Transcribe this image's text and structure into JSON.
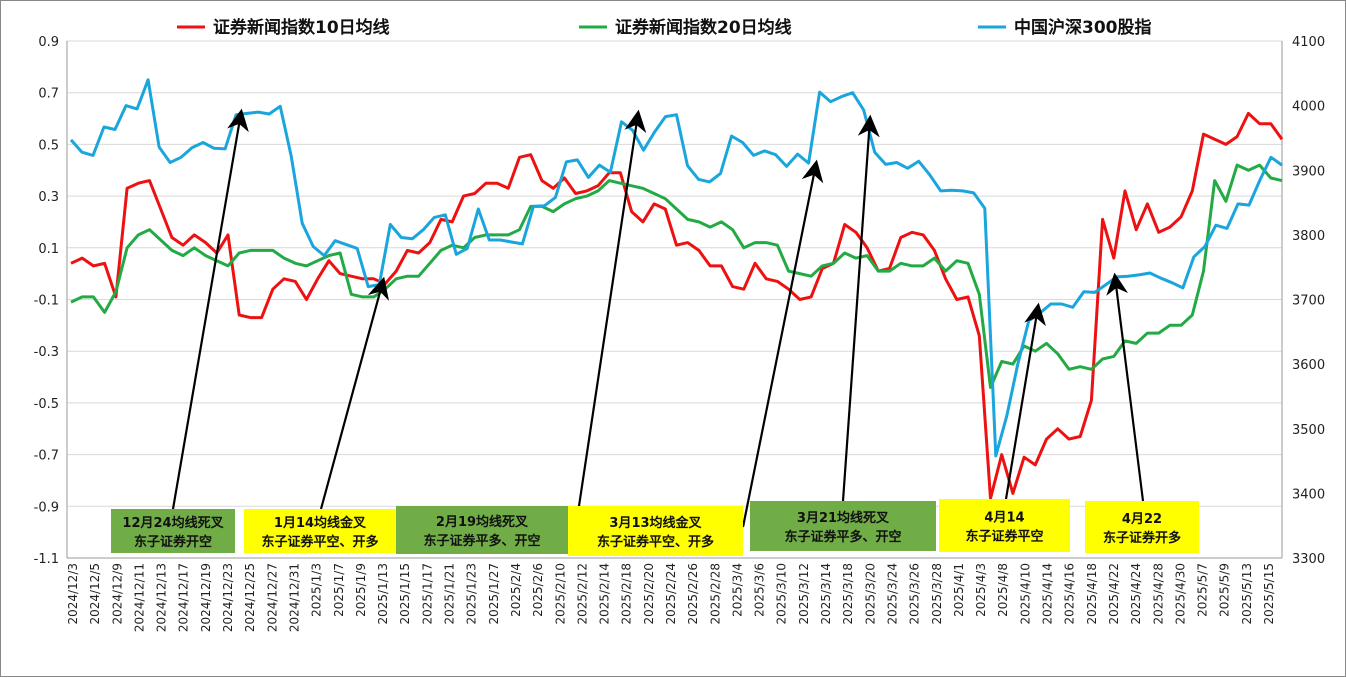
{
  "chart_data": {
    "type": "line",
    "legend_position": "top",
    "grid": {
      "horizontal": true,
      "vertical": false
    },
    "left_axis": {
      "ticks": [
        "0.9",
        "0.7",
        "0.5",
        "0.3",
        "0.1",
        "-0.1",
        "-0.3",
        "-0.5",
        "-0.7",
        "-0.9",
        "-1.1"
      ],
      "ylim": [
        -1.1,
        0.9
      ]
    },
    "right_axis": {
      "ticks": [
        "4100",
        "4000",
        "3900",
        "3800",
        "3700",
        "3600",
        "3500",
        "3400",
        "3300"
      ],
      "ylim": [
        3300,
        4100
      ]
    },
    "x_tick_labels": [
      "2024/12/3",
      "2024/12/5",
      "2024/12/9",
      "2024/12/11",
      "2024/12/13",
      "2024/12/17",
      "2024/12/19",
      "2024/12/23",
      "2024/12/25",
      "2024/12/27",
      "2024/12/31",
      "2025/1/3",
      "2025/1/7",
      "2025/1/9",
      "2025/1/13",
      "2025/1/15",
      "2025/1/17",
      "2025/1/21",
      "2025/1/23",
      "2025/1/27",
      "2025/2/4",
      "2025/2/6",
      "2025/2/10",
      "2025/2/12",
      "2025/2/14",
      "2025/2/18",
      "2025/2/20",
      "2025/2/24",
      "2025/2/26",
      "2025/2/28",
      "2025/3/4",
      "2025/3/6",
      "2025/3/10",
      "2025/3/12",
      "2025/3/14",
      "2025/3/18",
      "2025/3/20",
      "2025/3/24",
      "2025/3/26",
      "2025/3/28",
      "2025/4/1",
      "2025/4/3",
      "2025/4/8",
      "2025/4/10",
      "2025/4/14",
      "2025/4/16",
      "2025/4/18",
      "2025/4/22",
      "2025/4/24",
      "2025/4/28",
      "2025/4/30",
      "2025/5/7",
      "2025/5/9",
      "2025/5/13",
      "2025/5/15"
    ],
    "series": [
      {
        "name": "证券新闻指数10日均线",
        "axis": "left",
        "color": "#ee1111",
        "values": [
          0.04,
          0.06,
          0.03,
          0.04,
          -0.09,
          0.33,
          0.35,
          0.36,
          0.25,
          0.14,
          0.11,
          0.15,
          0.12,
          0.08,
          0.15,
          -0.16,
          -0.17,
          -0.17,
          -0.06,
          -0.02,
          -0.03,
          -0.1,
          -0.02,
          0.05,
          0,
          -0.01,
          -0.02,
          -0.02,
          -0.04,
          0.01,
          0.09,
          0.08,
          0.12,
          0.21,
          0.2,
          0.3,
          0.31,
          0.35,
          0.35,
          0.33,
          0.45,
          0.46,
          0.36,
          0.33,
          0.37,
          0.31,
          0.32,
          0.34,
          0.39,
          0.39,
          0.24,
          0.2,
          0.27,
          0.25,
          0.11,
          0.12,
          0.09,
          0.03,
          0.03,
          -0.05,
          -0.06,
          0.04,
          -0.02,
          -0.03,
          -0.06,
          -0.1,
          -0.09,
          0.02,
          0.04,
          0.19,
          0.16,
          0.1,
          0.01,
          0.02,
          0.14,
          0.16,
          0.15,
          0.09,
          -0.02,
          -0.1,
          -0.09,
          -0.24,
          -0.87,
          -0.7,
          -0.85,
          -0.71,
          -0.74,
          -0.64,
          -0.6,
          -0.64,
          -0.63,
          -0.49,
          0.21,
          0.06,
          0.32,
          0.17,
          0.27,
          0.16,
          0.18,
          0.22,
          0.32,
          0.54,
          0.52,
          0.5,
          0.53,
          0.62,
          0.58,
          0.58,
          0.52
        ]
      },
      {
        "name": "证券新闻指数20日均线",
        "axis": "left",
        "color": "#22aa44",
        "values": [
          -0.11,
          -0.09,
          -0.09,
          -0.15,
          -0.07,
          0.1,
          0.15,
          0.17,
          0.13,
          0.09,
          0.07,
          0.1,
          0.07,
          0.05,
          0.03,
          0.08,
          0.09,
          0.09,
          0.09,
          0.06,
          0.04,
          0.03,
          0.05,
          0.07,
          0.08,
          -0.08,
          -0.09,
          -0.09,
          -0.06,
          -0.02,
          -0.01,
          -0.01,
          0.04,
          0.09,
          0.11,
          0.1,
          0.14,
          0.15,
          0.15,
          0.15,
          0.17,
          0.26,
          0.26,
          0.24,
          0.27,
          0.29,
          0.3,
          0.32,
          0.36,
          0.35,
          0.34,
          0.33,
          0.31,
          0.29,
          0.25,
          0.21,
          0.2,
          0.18,
          0.2,
          0.17,
          0.1,
          0.12,
          0.12,
          0.11,
          0.01,
          0,
          -0.01,
          0.03,
          0.04,
          0.08,
          0.06,
          0.07,
          0.01,
          0.01,
          0.04,
          0.03,
          0.03,
          0.06,
          0.01,
          0.05,
          0.04,
          -0.08,
          -0.44,
          -0.34,
          -0.35,
          -0.28,
          -0.3,
          -0.27,
          -0.31,
          -0.37,
          -0.36,
          -0.37,
          -0.33,
          -0.32,
          -0.26,
          -0.27,
          -0.23,
          -0.23,
          -0.2,
          -0.2,
          -0.16,
          0.01,
          0.36,
          0.28,
          0.42,
          0.4,
          0.42,
          0.37,
          0.36
        ]
      },
      {
        "name": "中国沪深300股指",
        "axis": "right",
        "color": "#1aa6dd",
        "values": [
          3947,
          3928,
          3923,
          3967,
          3963,
          4000,
          3995,
          4040,
          3936,
          3912,
          3920,
          3935,
          3943,
          3934,
          3933,
          3986,
          3988,
          3990,
          3987,
          3999,
          3922,
          3818,
          3782,
          3768,
          3791,
          3785,
          3779,
          3720,
          3723,
          3816,
          3796,
          3794,
          3808,
          3827,
          3831,
          3770,
          3779,
          3840,
          3792,
          3792,
          3789,
          3786,
          3844,
          3845,
          3858,
          3913,
          3916,
          3889,
          3908,
          3897,
          3975,
          3962,
          3931,
          3959,
          3983,
          3986,
          3907,
          3886,
          3882,
          3895,
          3953,
          3943,
          3923,
          3930,
          3924,
          3906,
          3925,
          3911,
          4021,
          4006,
          4014,
          4020,
          3993,
          3928,
          3909,
          3912,
          3903,
          3914,
          3893,
          3868,
          3869,
          3868,
          3865,
          3841,
          3458,
          3520,
          3600,
          3667,
          3679,
          3693,
          3693,
          3688,
          3712,
          3711,
          3723,
          3735,
          3736,
          3738,
          3741,
          3733,
          3726,
          3718,
          3766,
          3782,
          3815,
          3810,
          3848,
          3846,
          3885,
          3920,
          3908
        ]
      }
    ]
  },
  "legend": {
    "items": [
      {
        "label": "证券新闻指数10日均线",
        "color": "#ee1111"
      },
      {
        "label": "证券新闻指数20日均线",
        "color": "#22aa44"
      },
      {
        "label": "中国沪深300股指",
        "color": "#1aa6dd"
      }
    ]
  },
  "annotations": [
    {
      "line1": "12月24均线死叉",
      "line2": "东子证券开空",
      "bg": "#70ad47"
    },
    {
      "line1": "1月14均线金叉",
      "line2": "东子证券平空、开多",
      "bg": "#ffff00"
    },
    {
      "line1": "2月19均线死叉",
      "line2": "东子证券平多、开空",
      "bg": "#70ad47"
    },
    {
      "line1": "3月13均线金叉",
      "line2": "东子证券平空、开多",
      "bg": "#ffff00"
    },
    {
      "line1": "3月21均线死叉",
      "line2": "东子证券平多、开空",
      "bg": "#70ad47"
    },
    {
      "line1": "4月14",
      "line2": "东子证券平空",
      "bg": "#ffff00"
    },
    {
      "line1": "4月22",
      "line2": "东子证券开多",
      "bg": "#ffff00"
    }
  ]
}
